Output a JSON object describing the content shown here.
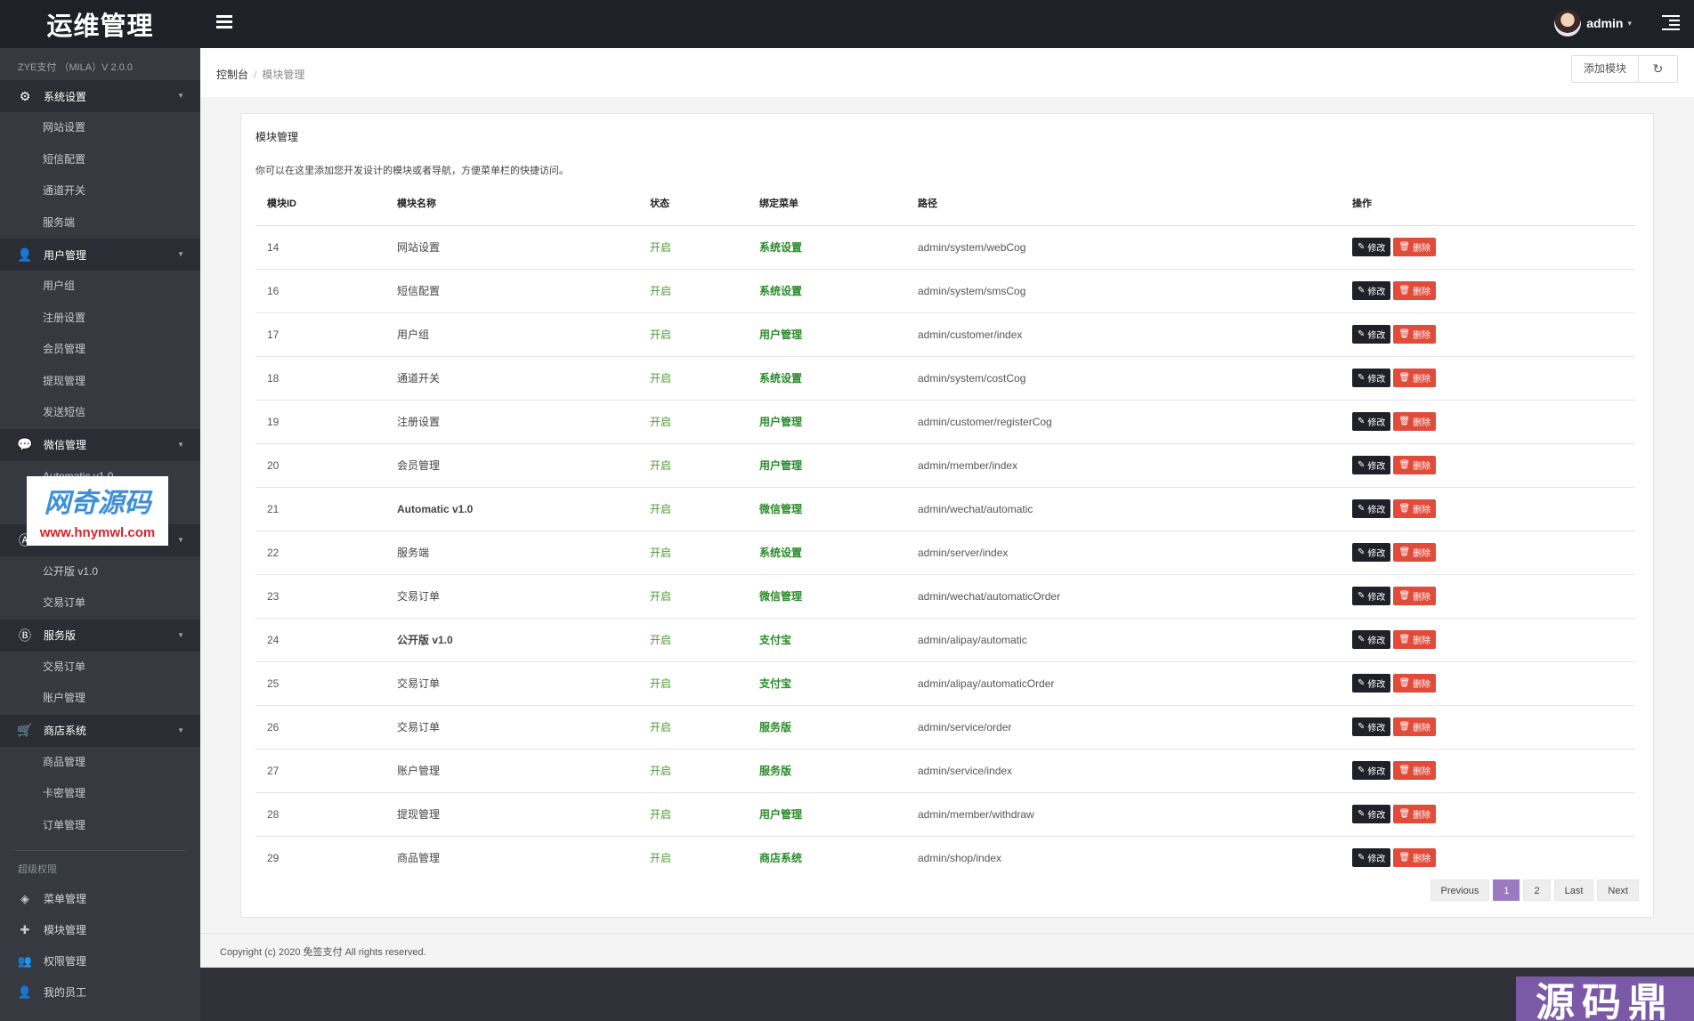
{
  "header": {
    "brand": "运维管理",
    "username": "admin",
    "caret": "▾"
  },
  "sidebar": {
    "version": "ZYE支付 （MILA）V 2.0.0",
    "groups": [
      {
        "label": "系统设置",
        "icon": "gear-icon",
        "items": [
          "网站设置",
          "短信配置",
          "通道开关",
          "服务端"
        ]
      },
      {
        "label": "用户管理",
        "icon": "user-icon",
        "items": [
          "用户组",
          "注册设置",
          "会员管理",
          "提现管理",
          "发送短信"
        ]
      },
      {
        "label": "微信管理",
        "icon": "wechat-icon",
        "items": [
          "Automatic v1.0",
          "交易订单"
        ]
      },
      {
        "label": "支付宝",
        "icon": "alipay-icon",
        "items": [
          "公开版 v1.0",
          "交易订单"
        ]
      },
      {
        "label": "服务版",
        "icon": "service-icon",
        "items": [
          "交易订单",
          "账户管理"
        ]
      },
      {
        "label": "商店系统",
        "icon": "cart-icon",
        "items": [
          "商品管理",
          "卡密管理",
          "订单管理"
        ]
      }
    ],
    "super_label": "超级权限",
    "super_items": [
      {
        "label": "菜单管理",
        "icon": "cube-icon"
      },
      {
        "label": "模块管理",
        "icon": "puzzle-icon"
      },
      {
        "label": "权限管理",
        "icon": "users-icon"
      },
      {
        "label": "我的员工",
        "icon": "staff-icon"
      }
    ],
    "watermark": {
      "title": "网奇源码",
      "url": "www.hnymwl.com"
    }
  },
  "breadcrumb": {
    "home": "控制台",
    "sep": "/",
    "current": "模块管理"
  },
  "actions": {
    "add_label": "添加模块",
    "refresh_icon": "↻"
  },
  "panel": {
    "title": "模块管理",
    "description": "你可以在这里添加您开发设计的模块或者导航，方便菜单栏的快捷访问。"
  },
  "table": {
    "columns": [
      "模块ID",
      "模块名称",
      "状态",
      "绑定菜单",
      "路径",
      "操作"
    ],
    "edit_label": "修改",
    "delete_label": "删除",
    "rows": [
      {
        "id": "14",
        "name": "网站设置",
        "status": "开启",
        "menu": "系统设置",
        "path": "admin/system/webCog"
      },
      {
        "id": "16",
        "name": "短信配置",
        "status": "开启",
        "menu": "系统设置",
        "path": "admin/system/smsCog"
      },
      {
        "id": "17",
        "name": "用户组",
        "status": "开启",
        "menu": "用户管理",
        "path": "admin/customer/index"
      },
      {
        "id": "18",
        "name": "通道开关",
        "status": "开启",
        "menu": "系统设置",
        "path": "admin/system/costCog"
      },
      {
        "id": "19",
        "name": "注册设置",
        "status": "开启",
        "menu": "用户管理",
        "path": "admin/customer/registerCog"
      },
      {
        "id": "20",
        "name": "会员管理",
        "status": "开启",
        "menu": "用户管理",
        "path": "admin/member/index"
      },
      {
        "id": "21",
        "name": "Automatic v1.0",
        "status": "开启",
        "menu": "微信管理",
        "path": "admin/wechat/automatic"
      },
      {
        "id": "22",
        "name": "服务端",
        "status": "开启",
        "menu": "系统设置",
        "path": "admin/server/index"
      },
      {
        "id": "23",
        "name": "交易订单",
        "status": "开启",
        "menu": "微信管理",
        "path": "admin/wechat/automaticOrder"
      },
      {
        "id": "24",
        "name": "公开版 v1.0",
        "status": "开启",
        "menu": "支付宝",
        "path": "admin/alipay/automatic"
      },
      {
        "id": "25",
        "name": "交易订单",
        "status": "开启",
        "menu": "支付宝",
        "path": "admin/alipay/automaticOrder"
      },
      {
        "id": "26",
        "name": "交易订单",
        "status": "开启",
        "menu": "服务版",
        "path": "admin/service/order"
      },
      {
        "id": "27",
        "name": "账户管理",
        "status": "开启",
        "menu": "服务版",
        "path": "admin/service/index"
      },
      {
        "id": "28",
        "name": "提现管理",
        "status": "开启",
        "menu": "用户管理",
        "path": "admin/member/withdraw"
      },
      {
        "id": "29",
        "name": "商品管理",
        "status": "开启",
        "menu": "商店系统",
        "path": "admin/shop/index"
      }
    ]
  },
  "pagination": {
    "previous": "Previous",
    "pages": [
      "1",
      "2"
    ],
    "active": "1",
    "last": "Last",
    "next": "Next"
  },
  "footer": {
    "copyright": "Copyright (c) 2020 免签支付 All rights reserved."
  },
  "corner_watermark": "源码鼎",
  "colors": {
    "topbar": "#1e2128",
    "sidebar": "#363940",
    "status_on": "#4c9b2f",
    "delete": "#e04b3a",
    "page_active": "#9b7bbf"
  }
}
